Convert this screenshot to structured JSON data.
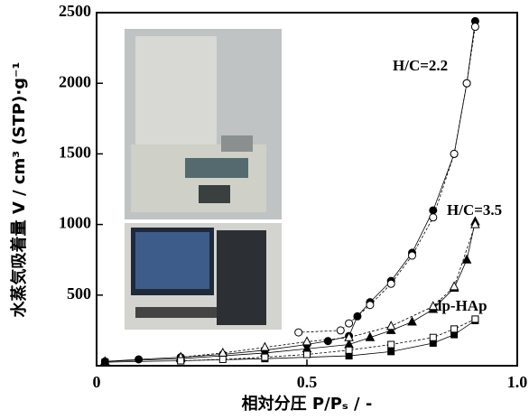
{
  "chart_data": {
    "type": "line",
    "xlabel": "相対分圧 P/Pₛ / -",
    "ylabel": "水蒸気吸着量 V / cm³ (STP)·g⁻¹",
    "xlim": [
      0,
      1
    ],
    "xticks": [
      0,
      0.5,
      {
        "value": 1,
        "label": "1.0"
      }
    ],
    "ylim": [
      0,
      2500
    ],
    "yticks": [
      500,
      1000,
      1500,
      2000,
      2500
    ],
    "annotations": [
      "H/C=2.2",
      "H/C=3.5",
      "dp-HAp"
    ],
    "series": [
      {
        "marker": "circle",
        "filled": true,
        "color": "#000000",
        "x": [
          0.02,
          0.1,
          0.2,
          0.3,
          0.4,
          0.5,
          0.55,
          0.6,
          0.62,
          0.65,
          0.7,
          0.75,
          0.8,
          0.85,
          0.88,
          0.9
        ],
        "values": [
          30,
          45,
          60,
          80,
          110,
          150,
          175,
          210,
          350,
          450,
          600,
          800,
          1100,
          1500,
          2000,
          2440
        ]
      },
      {
        "marker": "circle",
        "filled": false,
        "color": "#000000",
        "x": [
          0.9,
          0.88,
          0.85,
          0.8,
          0.75,
          0.7,
          0.65,
          0.6,
          0.58,
          0.48
        ],
        "values": [
          2400,
          2000,
          1500,
          1050,
          780,
          580,
          430,
          300,
          250,
          236
        ]
      },
      {
        "marker": "triangle",
        "filled": true,
        "color": "#000000",
        "x": [
          0.02,
          0.2,
          0.4,
          0.5,
          0.6,
          0.65,
          0.7,
          0.75,
          0.8,
          0.85,
          0.88,
          0.9
        ],
        "values": [
          30,
          50,
          90,
          120,
          150,
          200,
          250,
          310,
          400,
          550,
          750,
          1020
        ]
      },
      {
        "marker": "triangle",
        "filled": false,
        "color": "#000000",
        "x": [
          0.9,
          0.85,
          0.8,
          0.7,
          0.6,
          0.5,
          0.4,
          0.3,
          0.2
        ],
        "values": [
          1000,
          560,
          420,
          280,
          200,
          170,
          130,
          90,
          60
        ]
      },
      {
        "marker": "square",
        "filled": true,
        "color": "#000000",
        "x": [
          0.02,
          0.2,
          0.4,
          0.6,
          0.7,
          0.8,
          0.85,
          0.9
        ],
        "values": [
          25,
          35,
          50,
          70,
          100,
          160,
          220,
          320
        ]
      },
      {
        "marker": "square",
        "filled": false,
        "color": "#000000",
        "x": [
          0.9,
          0.85,
          0.8,
          0.7,
          0.6,
          0.5,
          0.4,
          0.3,
          0.2
        ],
        "values": [
          330,
          260,
          200,
          150,
          110,
          80,
          60,
          45,
          35
        ]
      }
    ]
  }
}
